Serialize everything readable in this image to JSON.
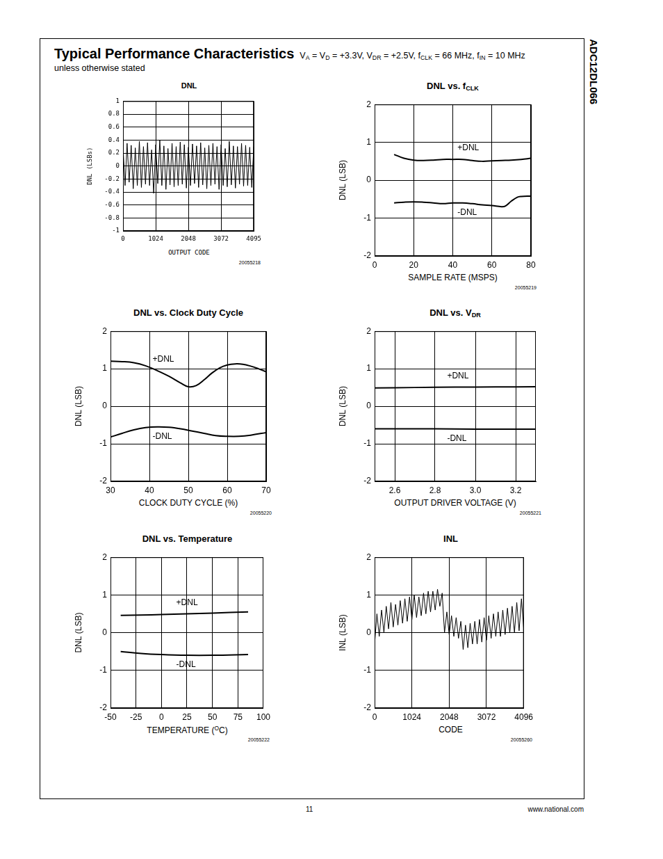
{
  "header": {
    "title": "Typical Performance Characteristics",
    "conditions": [
      "V",
      {
        "sub": "A"
      },
      " = V",
      {
        "sub": "D"
      },
      " = +3.3V, V",
      {
        "sub": "DR"
      },
      " = +2.5V, f",
      {
        "sub": "CLK"
      },
      " = 66 MHz, f",
      {
        "sub": "IN"
      },
      " = 10 MHz"
    ],
    "conditions_note": "unless otherwise stated"
  },
  "side_label": "ADC12DL066",
  "footer": {
    "page": 11,
    "url": "www.national.com"
  },
  "chart_data": [
    {
      "type": "line",
      "title": [
        "DNL"
      ],
      "x_label": [
        "OUTPUT CODE"
      ],
      "y_label": "DNL (LSBs)",
      "figure_id": "20055218",
      "color": "#000000",
      "grid": true,
      "x": [
        0,
        64,
        128,
        192,
        256,
        320,
        384,
        448,
        512,
        576,
        640,
        704,
        768,
        832,
        896,
        960,
        1024,
        1088,
        1152,
        1216,
        1280,
        1344,
        1408,
        1472,
        1536,
        1600,
        1664,
        1728,
        1792,
        1856,
        1920,
        1984,
        2048,
        2112,
        2176,
        2240,
        2304,
        2368,
        2432,
        2496,
        2560,
        2624,
        2688,
        2752,
        2816,
        2880,
        2944,
        3008,
        3072,
        3136,
        3200,
        3264,
        3328,
        3392,
        3456,
        3520,
        3584,
        3648,
        3712,
        3776,
        3840,
        3904,
        3968,
        4032,
        4095
      ],
      "values": [
        0.3,
        -0.3,
        0.35,
        -0.25,
        0.32,
        -0.35,
        0.28,
        -0.3,
        0.38,
        -0.33,
        0.3,
        -0.28,
        0.36,
        -0.3,
        0.25,
        -0.42,
        0.33,
        -0.27,
        0.4,
        -0.3,
        0.31,
        -0.36,
        0.27,
        -0.29,
        0.35,
        -0.32,
        0.3,
        -0.3,
        0.37,
        -0.28,
        0.33,
        -0.34,
        0.29,
        -0.3,
        0.34,
        -0.27,
        0.31,
        -0.33,
        0.36,
        -0.29,
        0.28,
        -0.35,
        0.32,
        -0.3,
        0.35,
        -0.28,
        0.3,
        -0.36,
        0.33,
        -0.3,
        0.27,
        -0.32,
        0.38,
        -0.29,
        0.31,
        -0.34,
        0.3,
        -0.28,
        0.35,
        -0.31,
        0.32,
        -0.3,
        0.29,
        -0.33,
        0.3
      ],
      "xlim": [
        0,
        4095
      ],
      "xticks": [
        0,
        1024,
        2048,
        3072,
        4095
      ],
      "ylim": [
        -1,
        1
      ],
      "yticks": [
        -1,
        -0.8,
        -0.6,
        -0.4,
        -0.2,
        0,
        0.2,
        0.4,
        0.6,
        0.8,
        1
      ]
    },
    {
      "type": "line",
      "title": [
        "DNL vs. f",
        {
          "sub": "CLK"
        }
      ],
      "x_label": [
        "SAMPLE RATE (MSPS)"
      ],
      "y_label": "DNL (LSB)",
      "figure_id": "20055219",
      "grid": true,
      "series": [
        {
          "name": "+DNL",
          "color": "#000000",
          "x": [
            10,
            15,
            20,
            25,
            30,
            35,
            40,
            45,
            50,
            55,
            60,
            65,
            70,
            75,
            80
          ],
          "values": [
            0.68,
            0.58,
            0.53,
            0.52,
            0.53,
            0.55,
            0.55,
            0.55,
            0.52,
            0.5,
            0.51,
            0.52,
            0.53,
            0.55,
            0.58
          ]
        },
        {
          "name": "-DNL",
          "color": "#000000",
          "x": [
            10,
            15,
            20,
            25,
            30,
            35,
            40,
            45,
            50,
            55,
            60,
            65,
            67,
            70,
            73,
            75,
            80
          ],
          "values": [
            -0.6,
            -0.58,
            -0.57,
            -0.58,
            -0.6,
            -0.62,
            -0.6,
            -0.6,
            -0.62,
            -0.65,
            -0.67,
            -0.7,
            -0.68,
            -0.55,
            -0.45,
            -0.43,
            -0.42
          ]
        }
      ],
      "xlim": [
        0,
        80
      ],
      "xticks": [
        0,
        20,
        40,
        60,
        80
      ],
      "ylim": [
        -2,
        2
      ],
      "yticks": [
        -2,
        -1,
        0,
        1,
        2
      ]
    },
    {
      "type": "line",
      "title": [
        "DNL vs. Clock Duty Cycle"
      ],
      "x_label": [
        "CLOCK DUTY CYCLE (%)"
      ],
      "y_label": "DNL (LSB)",
      "figure_id": "20055220",
      "grid": true,
      "series": [
        {
          "name": "+DNL",
          "color": "#000000",
          "x": [
            30,
            33,
            36,
            39,
            42,
            45,
            48,
            50,
            52,
            54,
            56,
            58,
            60,
            62,
            64,
            66,
            68,
            70
          ],
          "values": [
            1.2,
            1.19,
            1.16,
            1.08,
            0.95,
            0.8,
            0.62,
            0.52,
            0.55,
            0.7,
            0.88,
            1.02,
            1.1,
            1.13,
            1.12,
            1.07,
            1.0,
            0.92
          ]
        },
        {
          "name": "-DNL",
          "color": "#000000",
          "x": [
            30,
            33,
            36,
            39,
            42,
            45,
            48,
            51,
            54,
            57,
            60,
            63,
            66,
            70
          ],
          "values": [
            -0.82,
            -0.72,
            -0.63,
            -0.57,
            -0.55,
            -0.56,
            -0.6,
            -0.66,
            -0.72,
            -0.78,
            -0.8,
            -0.8,
            -0.77,
            -0.7
          ]
        }
      ],
      "xlim": [
        30,
        70
      ],
      "xticks": [
        30,
        40,
        50,
        60,
        70
      ],
      "ylim": [
        -2,
        2
      ],
      "yticks": [
        -2,
        -1,
        0,
        1,
        2
      ]
    },
    {
      "type": "line",
      "title": [
        "DNL vs. V",
        {
          "sub": "DR"
        }
      ],
      "x_label": [
        "OUTPUT DRIVER VOLTAGE (V)"
      ],
      "y_label": "DNL (LSB)",
      "figure_id": "20055221",
      "grid": true,
      "series": [
        {
          "name": "+DNL",
          "color": "#000000",
          "x": [
            2.5,
            2.7,
            2.9,
            3.1,
            3.3
          ],
          "values": [
            0.49,
            0.5,
            0.51,
            0.515,
            0.52
          ]
        },
        {
          "name": "-DNL",
          "color": "#000000",
          "x": [
            2.5,
            2.7,
            2.9,
            3.1,
            3.3
          ],
          "values": [
            -0.6,
            -0.6,
            -0.605,
            -0.61,
            -0.61
          ]
        }
      ],
      "xlim": [
        2.5,
        3.3
      ],
      "xticks": [
        2.6,
        2.8,
        {
          "value": 3,
          "label": "3.0"
        },
        3.2
      ],
      "ylim": [
        -2,
        2
      ],
      "yticks": [
        -2,
        -1,
        0,
        1,
        2
      ]
    },
    {
      "type": "line",
      "title": [
        "DNL vs. Temperature"
      ],
      "x_label": [
        "TEMPERATURE (",
        {
          "sup": "O"
        },
        "C)"
      ],
      "y_label": "DNL (LSB)",
      "figure_id": "20055222",
      "grid": true,
      "series": [
        {
          "name": "+DNL",
          "color": "#000000",
          "x": [
            -40,
            -20,
            0,
            25,
            50,
            85
          ],
          "values": [
            0.46,
            0.47,
            0.48,
            0.5,
            0.52,
            0.55
          ]
        },
        {
          "name": "-DNL",
          "color": "#000000",
          "x": [
            -40,
            -20,
            0,
            25,
            50,
            85
          ],
          "values": [
            -0.5,
            -0.55,
            -0.58,
            -0.6,
            -0.6,
            -0.58
          ]
        }
      ],
      "xlim": [
        -50,
        100
      ],
      "xticks": [
        -50,
        -25,
        0,
        25,
        50,
        75,
        100
      ],
      "ylim": [
        -2,
        2
      ],
      "yticks": [
        -2,
        -1,
        0,
        1,
        2
      ]
    },
    {
      "type": "line",
      "title": [
        "INL"
      ],
      "x_label": [
        "CODE"
      ],
      "y_label": "INL (LSB)",
      "figure_id": "20055260",
      "color": "#000000",
      "grid": true,
      "x": [
        0,
        64,
        128,
        192,
        256,
        320,
        384,
        448,
        512,
        576,
        640,
        704,
        768,
        832,
        896,
        960,
        1024,
        1088,
        1152,
        1216,
        1280,
        1344,
        1408,
        1472,
        1536,
        1600,
        1664,
        1728,
        1792,
        1856,
        1920,
        1984,
        2048,
        2112,
        2176,
        2240,
        2304,
        2368,
        2432,
        2496,
        2560,
        2624,
        2688,
        2752,
        2816,
        2880,
        2944,
        3008,
        3072,
        3136,
        3200,
        3264,
        3328,
        3392,
        3456,
        3520,
        3584,
        3648,
        3712,
        3776,
        3840,
        3904,
        3968,
        4032,
        4095
      ],
      "values": [
        -0.3,
        0.5,
        -0.1,
        0.6,
        0,
        0.7,
        0.1,
        0.8,
        0.15,
        0.75,
        0.2,
        0.85,
        0.25,
        0.9,
        0.3,
        0.95,
        0.35,
        1.0,
        0.4,
        0.95,
        0.45,
        1.05,
        0.5,
        1.1,
        0.55,
        1.1,
        0.6,
        1.15,
        0.7,
        1.05,
        0,
        0.55,
        -0.05,
        0.45,
        -0.1,
        0.4,
        -0.15,
        0.3,
        -0.45,
        0.2,
        -0.4,
        0.25,
        -0.3,
        0.3,
        -0.3,
        0.35,
        -0.25,
        0.4,
        -0.2,
        0.45,
        -0.15,
        0.5,
        -0.1,
        0.55,
        -0.1,
        0.6,
        -0.05,
        0.65,
        0,
        0.7,
        0,
        0.8,
        0.05,
        0.9,
        0.1
      ],
      "xlim": [
        0,
        4096
      ],
      "xticks": [
        0,
        1024,
        2048,
        3072,
        4096
      ],
      "ylim": [
        -2,
        2
      ],
      "yticks": [
        -2,
        -1,
        0,
        1,
        2
      ]
    }
  ]
}
